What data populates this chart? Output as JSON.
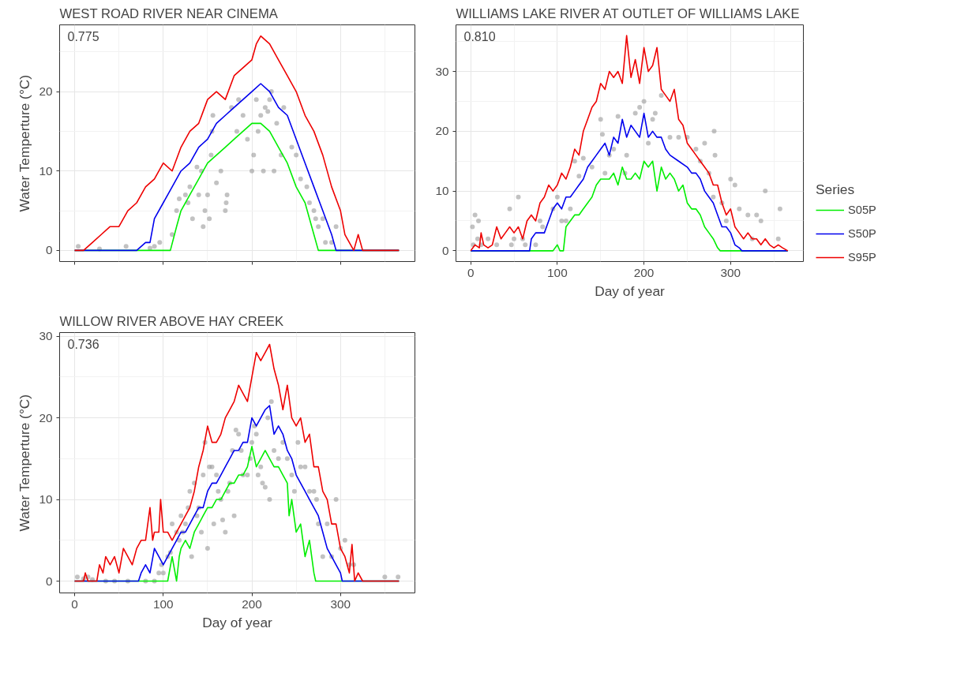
{
  "chart_data": [
    {
      "type": "line",
      "title": "WEST ROAD RIVER NEAR CINEMA",
      "ylabel": "Water Temperture (°C)",
      "xlim": [
        -17,
        384
      ],
      "ylim": [
        -1.4,
        28.4
      ],
      "xticks": [
        0,
        100,
        200,
        300
      ],
      "yticks": [
        0,
        10,
        20
      ],
      "tick_labels": "y",
      "grid": true,
      "annotations": [
        "0.775"
      ],
      "series": [
        {
          "type": "scatter",
          "color": "#999999",
          "x": [
            4,
            28,
            58,
            85,
            90,
            96,
            110,
            115,
            118,
            125,
            128,
            130,
            133,
            138,
            140,
            143,
            145,
            147,
            150,
            152,
            154,
            155,
            156,
            160,
            165,
            170,
            171,
            172,
            177,
            185,
            183,
            190,
            195,
            200,
            202,
            205,
            207,
            210,
            213,
            215,
            218,
            220,
            222,
            225,
            228,
            233,
            236,
            245,
            250,
            255,
            262,
            265,
            270,
            272,
            275,
            280,
            283,
            290,
            295
          ],
          "values": [
            0.5,
            0.2,
            0.5,
            0.3,
            0.5,
            1,
            2,
            5,
            6.5,
            7,
            6,
            8,
            4,
            10.5,
            7,
            10,
            3,
            5,
            7,
            4,
            12,
            15,
            17,
            8.5,
            10,
            5,
            6,
            7,
            18,
            19,
            15,
            17,
            14,
            10,
            12,
            19,
            15,
            17,
            10,
            18,
            17.5,
            19,
            20,
            10,
            16,
            12,
            18,
            13,
            12,
            9,
            8,
            6,
            5,
            4,
            3,
            4,
            1,
            1,
            3
          ]
        },
        {
          "color": "#00ee00",
          "x": [
            0,
            108,
            115,
            120,
            130,
            140,
            150,
            160,
            170,
            180,
            190,
            200,
            210,
            220,
            230,
            240,
            250,
            260,
            270,
            275,
            366
          ],
          "values": [
            0,
            0,
            3,
            5,
            7,
            9,
            11,
            12,
            13,
            14,
            15,
            16,
            16,
            15,
            13,
            11,
            8,
            6,
            2,
            0,
            0
          ]
        },
        {
          "color": "#0000ee",
          "x": [
            0,
            70,
            80,
            85,
            90,
            100,
            110,
            120,
            130,
            140,
            150,
            160,
            170,
            180,
            190,
            200,
            210,
            220,
            230,
            240,
            250,
            260,
            270,
            280,
            290,
            295,
            366
          ],
          "values": [
            0,
            0,
            1,
            1,
            4,
            6,
            8,
            10,
            11,
            13,
            14,
            16,
            17,
            18,
            19,
            20,
            21,
            20,
            18,
            17,
            14,
            11,
            8,
            5,
            2,
            0,
            0
          ]
        },
        {
          "color": "#ee0000",
          "x": [
            0,
            10,
            20,
            30,
            40,
            50,
            60,
            70,
            80,
            90,
            100,
            110,
            120,
            130,
            140,
            150,
            160,
            170,
            180,
            190,
            200,
            205,
            210,
            220,
            230,
            240,
            250,
            260,
            270,
            280,
            290,
            300,
            305,
            310,
            315,
            320,
            325,
            366
          ],
          "values": [
            0,
            0,
            1,
            2,
            3,
            3,
            5,
            6,
            8,
            9,
            11,
            10,
            13,
            15,
            16,
            19,
            20,
            19,
            22,
            23,
            24,
            26,
            27,
            26,
            24,
            22,
            20,
            17,
            15,
            12,
            8,
            5,
            2,
            1,
            0,
            2,
            0,
            0
          ]
        }
      ]
    },
    {
      "type": "line",
      "title": "WILLIAMS LAKE RIVER AT OUTLET OF WILLIAMS LAKE",
      "xlabel": "Day of year",
      "xlim": [
        -17,
        384
      ],
      "ylim": [
        -1.8,
        37.8
      ],
      "xticks": [
        0,
        100,
        200,
        300
      ],
      "yticks": [
        0,
        10,
        20,
        30
      ],
      "grid": true,
      "legend": "right",
      "legend_title": "Series",
      "annotations": [
        "0.810"
      ],
      "series": [
        {
          "type": "scatter",
          "color": "#999999",
          "x": [
            2,
            3,
            5,
            8,
            9,
            12,
            20,
            30,
            45,
            47,
            50,
            55,
            60,
            63,
            75,
            80,
            83,
            95,
            100,
            105,
            110,
            115,
            120,
            125,
            130,
            140,
            150,
            152,
            155,
            160,
            165,
            170,
            178,
            180,
            190,
            195,
            200,
            205,
            210,
            213,
            220,
            230,
            240,
            250,
            260,
            265,
            270,
            275,
            280,
            281,
            282,
            290,
            295,
            300,
            305,
            310,
            320,
            325,
            330,
            335,
            340,
            355,
            357
          ],
          "values": [
            4,
            1,
            6,
            2,
            5,
            1,
            2,
            1,
            7,
            1,
            2,
            9,
            2,
            1,
            1,
            5,
            4,
            7,
            9,
            5,
            5,
            7,
            15,
            12.5,
            15.5,
            14,
            22,
            19.5,
            13,
            16,
            17,
            22.5,
            13,
            16,
            23,
            24,
            25,
            18,
            22,
            23,
            26,
            19,
            19,
            19,
            17,
            15,
            18,
            13,
            9,
            20,
            16,
            8,
            5,
            12,
            11,
            7,
            6,
            2,
            6,
            5,
            10,
            2,
            7
          ]
        },
        {
          "name": "S05P",
          "color": "#00ee00",
          "x": [
            0,
            95,
            100,
            103,
            107,
            110,
            115,
            120,
            125,
            130,
            135,
            140,
            145,
            150,
            155,
            160,
            165,
            170,
            175,
            180,
            185,
            190,
            195,
            200,
            205,
            210,
            215,
            220,
            225,
            230,
            235,
            240,
            245,
            250,
            255,
            260,
            265,
            270,
            275,
            280,
            285,
            288,
            366
          ],
          "values": [
            0,
            0,
            1,
            0,
            0,
            4,
            5,
            6,
            6,
            7,
            8,
            9,
            11,
            12,
            12,
            12,
            13,
            11,
            14,
            12,
            12,
            13,
            12,
            15,
            14,
            15,
            10,
            14,
            12,
            13,
            12,
            10,
            11,
            8,
            7,
            7,
            6,
            4,
            3,
            2,
            0.5,
            0,
            0
          ]
        },
        {
          "name": "S50P",
          "color": "#0000ee",
          "x": [
            0,
            68,
            70,
            75,
            80,
            85,
            90,
            95,
            100,
            105,
            110,
            115,
            120,
            125,
            130,
            135,
            140,
            145,
            150,
            155,
            160,
            165,
            170,
            175,
            180,
            185,
            190,
            195,
            200,
            205,
            210,
            215,
            220,
            225,
            230,
            240,
            250,
            255,
            260,
            265,
            270,
            275,
            280,
            285,
            290,
            295,
            300,
            305,
            310,
            313,
            366
          ],
          "values": [
            0,
            0,
            2,
            3,
            3,
            3,
            5,
            7,
            8,
            7,
            9,
            9,
            10,
            11,
            12,
            14,
            15,
            16,
            17,
            18,
            16,
            19,
            18,
            22,
            19,
            21,
            20,
            19,
            23,
            19,
            20,
            19,
            19,
            17,
            16,
            15,
            14,
            13,
            13,
            12,
            10,
            9,
            8,
            6,
            4,
            4,
            3,
            1,
            0.5,
            0,
            0
          ]
        },
        {
          "name": "S95P",
          "color": "#ee0000",
          "x": [
            0,
            5,
            10,
            12,
            15,
            20,
            25,
            30,
            35,
            40,
            45,
            50,
            55,
            60,
            65,
            70,
            75,
            80,
            85,
            90,
            95,
            100,
            105,
            110,
            115,
            120,
            125,
            130,
            135,
            140,
            145,
            150,
            155,
            160,
            165,
            170,
            175,
            180,
            185,
            190,
            195,
            200,
            205,
            210,
            215,
            220,
            225,
            230,
            235,
            240,
            245,
            250,
            255,
            260,
            265,
            270,
            275,
            280,
            285,
            290,
            295,
            300,
            305,
            310,
            315,
            320,
            325,
            330,
            335,
            340,
            345,
            350,
            355,
            360,
            366
          ],
          "values": [
            0,
            1,
            0.5,
            3,
            1,
            0.5,
            1,
            4,
            2,
            3,
            4,
            3,
            4,
            2,
            5,
            6,
            5,
            8,
            9,
            11,
            10,
            11,
            13,
            12,
            14,
            17,
            16,
            20,
            22,
            24,
            25,
            28,
            27,
            30,
            29,
            30,
            28,
            36,
            29,
            32,
            28,
            34,
            30,
            31,
            34,
            27,
            26,
            25,
            27,
            22,
            21,
            18,
            17,
            16,
            15,
            14,
            13,
            11,
            11,
            8,
            6,
            7,
            4,
            3,
            2,
            3,
            2,
            2,
            1,
            2,
            1,
            0.5,
            1,
            0.5,
            0
          ]
        }
      ]
    },
    {
      "type": "line",
      "title": "WILLOW RIVER ABOVE HAY CREEK",
      "xlabel": "Day of year",
      "ylabel": "Water Temperture (°C)",
      "xlim": [
        -17,
        384
      ],
      "ylim": [
        -1.45,
        30.45
      ],
      "xticks": [
        0,
        100,
        200,
        300
      ],
      "yticks": [
        0,
        10,
        20,
        30
      ],
      "grid": true,
      "annotations": [
        "0.736"
      ],
      "series": [
        {
          "type": "scatter",
          "color": "#999999",
          "x": [
            3,
            10,
            15,
            20,
            35,
            45,
            60,
            80,
            90,
            95,
            98,
            100,
            105,
            108,
            110,
            115,
            118,
            120,
            122,
            125,
            128,
            130,
            132,
            135,
            138,
            140,
            143,
            145,
            147,
            150,
            152,
            155,
            157,
            160,
            162,
            165,
            167,
            170,
            173,
            175,
            178,
            180,
            182,
            185,
            188,
            190,
            195,
            198,
            200,
            203,
            205,
            207,
            210,
            212,
            215,
            218,
            220,
            222,
            225,
            230,
            235,
            240,
            245,
            248,
            252,
            255,
            260,
            265,
            270,
            273,
            275,
            280,
            285,
            290,
            295,
            300,
            305,
            310,
            315,
            350,
            365
          ],
          "values": [
            0.5,
            0.3,
            0.5,
            0.2,
            0,
            0,
            0,
            0,
            0,
            1,
            2,
            1,
            3,
            3.5,
            7,
            6,
            5,
            8,
            6,
            7,
            9,
            11,
            3,
            12,
            8,
            9,
            6,
            13,
            17,
            4,
            14,
            14,
            7,
            13,
            11,
            10,
            7.5,
            6,
            11,
            12,
            16,
            8,
            18.5,
            18,
            16,
            13,
            13,
            15,
            17,
            19,
            18,
            13,
            14,
            12,
            11.5,
            20,
            10,
            22,
            16,
            15,
            17,
            15,
            13,
            11,
            17,
            14,
            14,
            11,
            11,
            10,
            7,
            3,
            7,
            3,
            10,
            4,
            5,
            2,
            2,
            0.5,
            0.5
          ]
        },
        {
          "color": "#00ee00",
          "x": [
            0,
            105,
            110,
            115,
            118,
            120,
            125,
            130,
            135,
            140,
            145,
            150,
            155,
            160,
            165,
            170,
            175,
            180,
            185,
            190,
            195,
            200,
            205,
            210,
            215,
            220,
            225,
            230,
            235,
            240,
            242,
            245,
            250,
            255,
            260,
            265,
            270,
            272,
            366
          ],
          "values": [
            0,
            0,
            3,
            0,
            3,
            4,
            5,
            4,
            6,
            7,
            8,
            9,
            9,
            10,
            10,
            11,
            12,
            12,
            13,
            13,
            14,
            16.5,
            14,
            15,
            16,
            15,
            14,
            14,
            13,
            12,
            8,
            10,
            6,
            7,
            3,
            5,
            1,
            0,
            0
          ]
        },
        {
          "color": "#0000ee",
          "x": [
            0,
            72,
            75,
            80,
            85,
            90,
            95,
            100,
            105,
            110,
            115,
            120,
            125,
            130,
            135,
            140,
            145,
            150,
            155,
            160,
            165,
            170,
            175,
            180,
            185,
            190,
            195,
            200,
            205,
            210,
            215,
            220,
            225,
            230,
            235,
            240,
            245,
            250,
            255,
            260,
            265,
            270,
            275,
            280,
            285,
            290,
            295,
            300,
            302,
            366
          ],
          "values": [
            0,
            0,
            1,
            2,
            1,
            4,
            3,
            2,
            3,
            4,
            5,
            6,
            6,
            7,
            8,
            9,
            9,
            11,
            12,
            12,
            13,
            14,
            15,
            16,
            16,
            17,
            17,
            20,
            19,
            20,
            21,
            21.5,
            18,
            19,
            18,
            16,
            15,
            13,
            12,
            11,
            10,
            9,
            8,
            6,
            4,
            3,
            2,
            1,
            0,
            0
          ]
        },
        {
          "color": "#ee0000",
          "x": [
            0,
            10,
            12,
            15,
            25,
            28,
            32,
            35,
            40,
            45,
            50,
            55,
            60,
            65,
            70,
            75,
            80,
            85,
            88,
            90,
            95,
            97,
            100,
            105,
            110,
            115,
            120,
            125,
            130,
            135,
            140,
            145,
            150,
            155,
            160,
            165,
            170,
            175,
            180,
            185,
            190,
            195,
            200,
            205,
            210,
            215,
            220,
            225,
            230,
            235,
            240,
            245,
            250,
            255,
            260,
            265,
            270,
            275,
            280,
            285,
            290,
            295,
            300,
            305,
            310,
            313,
            316,
            320,
            325,
            366
          ],
          "values": [
            0,
            0,
            1,
            0,
            0,
            2,
            1,
            3,
            2,
            3,
            1,
            4,
            3,
            2,
            4,
            5,
            5,
            9,
            5,
            6,
            6,
            10,
            6,
            6,
            5,
            6,
            7,
            8,
            9,
            11,
            14,
            16,
            19,
            17,
            17,
            18,
            20,
            21,
            22,
            24,
            23,
            22,
            25,
            28,
            27,
            28,
            29,
            26,
            24,
            21,
            24,
            20,
            19,
            20,
            17,
            18,
            14,
            14,
            11,
            10,
            7,
            7,
            4,
            3,
            1,
            4.5,
            0,
            1,
            0,
            0
          ]
        }
      ]
    }
  ]
}
